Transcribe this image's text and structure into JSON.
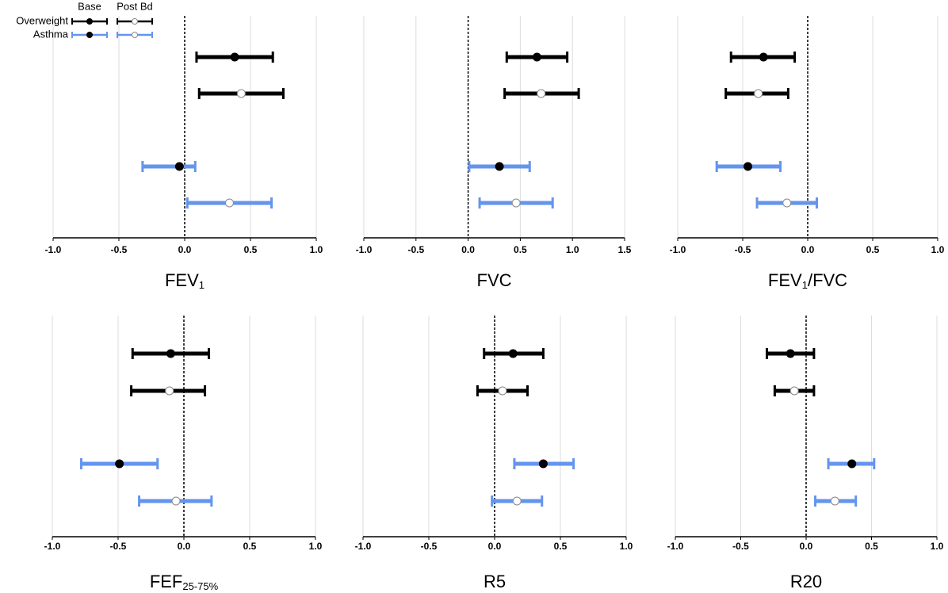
{
  "legend": {
    "groups": [
      {
        "name": "Overweight",
        "color": "#000000"
      },
      {
        "name": "Asthma",
        "color": "#6495ed"
      }
    ],
    "conditions": [
      "Base",
      "Post Bd"
    ]
  },
  "chart_data": [
    {
      "type": "forest",
      "title": [
        {
          "text": "FEV"
        },
        {
          "text": "1",
          "sub": true
        }
      ],
      "xlim": [
        -1,
        1
      ],
      "xticks": [
        {
          "value": -1,
          "label": "-1.0"
        },
        {
          "value": -0.5,
          "label": "-0.5"
        },
        {
          "value": 0,
          "label": "0.0"
        },
        {
          "value": 0.5,
          "label": "0.5"
        },
        {
          "value": 1,
          "label": "1.0"
        }
      ],
      "groups": [
        [
          {
            "value": 0.38,
            "low": 0.09,
            "high": 0.67
          },
          {
            "value": 0.43,
            "low": 0.11,
            "high": 0.75
          }
        ],
        [
          {
            "value": -0.04,
            "low": -0.32,
            "high": 0.08
          },
          {
            "value": 0.34,
            "low": 0.02,
            "high": 0.66
          }
        ]
      ]
    },
    {
      "type": "forest",
      "title": [
        {
          "text": "FVC"
        }
      ],
      "xlim": [
        -1,
        1.5
      ],
      "xticks": [
        {
          "value": -1,
          "label": "-1.0"
        },
        {
          "value": -0.5,
          "label": "-0.5"
        },
        {
          "value": 0,
          "label": "0.0"
        },
        {
          "value": 0.5,
          "label": "0.5"
        },
        {
          "value": 1,
          "label": "1.0"
        },
        {
          "value": 1.5,
          "label": "1.5"
        }
      ],
      "groups": [
        [
          {
            "value": 0.66,
            "low": 0.37,
            "high": 0.95
          },
          {
            "value": 0.7,
            "low": 0.35,
            "high": 1.06
          }
        ],
        [
          {
            "value": 0.3,
            "low": 0.01,
            "high": 0.59
          },
          {
            "value": 0.46,
            "low": 0.11,
            "high": 0.81
          }
        ]
      ]
    },
    {
      "type": "forest",
      "title": [
        {
          "text": "FEV"
        },
        {
          "text": "1",
          "sub": true
        },
        {
          "text": "/FVC"
        }
      ],
      "xlim": [
        -1,
        1
      ],
      "xticks": [
        {
          "value": -1,
          "label": "-1.0"
        },
        {
          "value": -0.5,
          "label": "-0.5"
        },
        {
          "value": 0,
          "label": "0.0"
        },
        {
          "value": 0.5,
          "label": "0.5"
        },
        {
          "value": 1,
          "label": "1.0"
        }
      ],
      "groups": [
        [
          {
            "value": -0.34,
            "low": -0.59,
            "high": -0.1
          },
          {
            "value": -0.38,
            "low": -0.63,
            "high": -0.15
          }
        ],
        [
          {
            "value": -0.46,
            "low": -0.7,
            "high": -0.21
          },
          {
            "value": -0.16,
            "low": -0.39,
            "high": 0.07
          }
        ]
      ]
    },
    {
      "type": "forest",
      "title": [
        {
          "text": "FEF"
        },
        {
          "text": "25-75%",
          "sub": true
        }
      ],
      "xlim": [
        -1,
        1
      ],
      "xticks": [
        {
          "value": -1,
          "label": "-1.0"
        },
        {
          "value": -0.5,
          "label": "-0.5"
        },
        {
          "value": 0,
          "label": "0.0"
        },
        {
          "value": 0.5,
          "label": "0.5"
        },
        {
          "value": 1,
          "label": "1.0"
        }
      ],
      "groups": [
        [
          {
            "value": -0.1,
            "low": -0.39,
            "high": 0.19
          },
          {
            "value": -0.11,
            "low": -0.4,
            "high": 0.16
          }
        ],
        [
          {
            "value": -0.49,
            "low": -0.78,
            "high": -0.2
          },
          {
            "value": -0.06,
            "low": -0.34,
            "high": 0.21
          }
        ]
      ]
    },
    {
      "type": "forest",
      "title": [
        {
          "text": "R5"
        }
      ],
      "xlim": [
        -1,
        1
      ],
      "xticks": [
        {
          "value": -1,
          "label": "-1.0"
        },
        {
          "value": -0.5,
          "label": "-0.5"
        },
        {
          "value": 0,
          "label": "0.0"
        },
        {
          "value": 0.5,
          "label": "0.5"
        },
        {
          "value": 1,
          "label": "1.0"
        }
      ],
      "groups": [
        [
          {
            "value": 0.14,
            "low": -0.08,
            "high": 0.37
          },
          {
            "value": 0.06,
            "low": -0.13,
            "high": 0.25
          }
        ],
        [
          {
            "value": 0.37,
            "low": 0.15,
            "high": 0.6
          },
          {
            "value": 0.17,
            "low": -0.02,
            "high": 0.36
          }
        ]
      ]
    },
    {
      "type": "forest",
      "title": [
        {
          "text": "R20"
        }
      ],
      "xlim": [
        -1,
        1
      ],
      "xticks": [
        {
          "value": -1,
          "label": "-1.0"
        },
        {
          "value": -0.5,
          "label": "-0.5"
        },
        {
          "value": 0,
          "label": "0.0"
        },
        {
          "value": 0.5,
          "label": "0.5"
        },
        {
          "value": 1,
          "label": "1.0"
        }
      ],
      "groups": [
        [
          {
            "value": -0.12,
            "low": -0.3,
            "high": 0.06
          },
          {
            "value": -0.09,
            "low": -0.24,
            "high": 0.06
          }
        ],
        [
          {
            "value": 0.35,
            "low": 0.17,
            "high": 0.52
          },
          {
            "value": 0.22,
            "low": 0.07,
            "high": 0.38
          }
        ]
      ]
    }
  ]
}
